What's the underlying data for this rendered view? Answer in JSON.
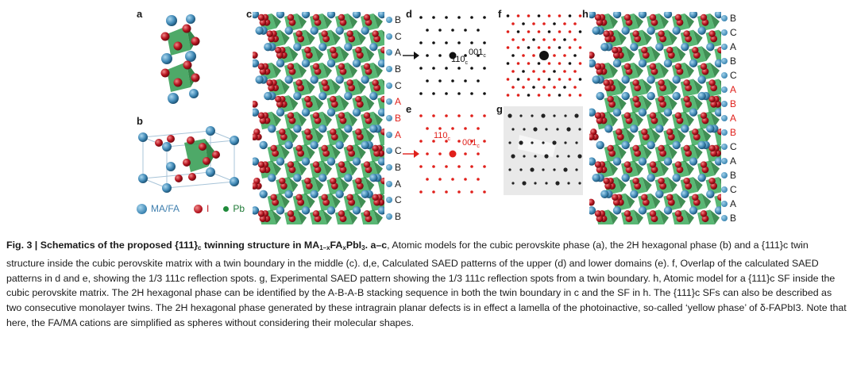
{
  "panels": {
    "a": "a",
    "b": "b",
    "c": "c",
    "d": "d",
    "e": "e",
    "f": "f",
    "g": "g",
    "h": "h"
  },
  "stack_c": [
    "B",
    "C",
    "A",
    "B",
    "C",
    "A",
    "B",
    "A",
    "C",
    "B",
    "A",
    "C",
    "B"
  ],
  "stack_c_colors": [
    "#1a1a1a",
    "#1a1a1a",
    "#1a1a1a",
    "#1a1a1a",
    "#1a1a1a",
    "#e0201b",
    "#e0201b",
    "#e0201b",
    "#1a1a1a",
    "#1a1a1a",
    "#1a1a1a",
    "#1a1a1a",
    "#1a1a1a"
  ],
  "stack_h": [
    "B",
    "C",
    "A",
    "B",
    "C",
    "A",
    "B",
    "A",
    "B",
    "C",
    "A",
    "B",
    "C",
    "A",
    "B"
  ],
  "stack_h_colors": [
    "#1a1a1a",
    "#1a1a1a",
    "#1a1a1a",
    "#1a1a1a",
    "#1a1a1a",
    "#e0201b",
    "#e0201b",
    "#e0201b",
    "#e0201b",
    "#1a1a1a",
    "#1a1a1a",
    "#1a1a1a",
    "#1a1a1a",
    "#1a1a1a",
    "#1a1a1a"
  ],
  "legend": {
    "mafa": "MA/FA",
    "i": "I",
    "pb": "Pb"
  },
  "colors": {
    "mafa": "#4a90bf",
    "i": "#c0161f",
    "pb": "#1f8a3a",
    "octa": "#3aa85a",
    "red_label": "#e0201b"
  },
  "saed": {
    "d_label1": "110",
    "d_sub1": "c",
    "d_label2": "001",
    "d_sub2": "c",
    "e_label1": "110",
    "e_sub1": "c",
    "e_label2": "001",
    "e_sub2": "c"
  },
  "caption": {
    "fig": "Fig. 3 |",
    "title_a": "Schematics of the proposed {111}",
    "title_sub_c": "c",
    "title_b": " twinning structure in MA",
    "title_sub1": "1–x",
    "title_c": "FA",
    "title_sub2": "x",
    "title_d": "PbI",
    "title_sub3": "3",
    "title_e": ". a–c",
    "body": ", Atomic models for the cubic perovskite phase (a), the 2H hexagonal phase (b) and a {111}c twin structure inside the cubic perovskite matrix with a twin boundary in the middle (c). d,e, Calculated SAED patterns of the upper (d) and lower domains (e). f, Overlap of the calculated SAED patterns in d and e, showing the 1/3 111c reflection spots. g, Experimental SAED pattern showing the 1/3 111c reflection spots from a twin boundary. h, Atomic model for a {111}c SF inside the cubic perovskite matrix. The 2H hexagonal phase can be identified by the A-B-A-B stacking sequence in both the twin boundary in c and the SF in h. The {111}c SFs can also be described as two consecutive monolayer twins. The 2H hexagonal phase generated by these intragrain planar defects is in effect a lamella of the photoinactive, so-called ‘yellow phase’ of δ-FAPbI3. Note that here, the FA/MA cations are simplified as spheres without considering their molecular shapes."
  }
}
